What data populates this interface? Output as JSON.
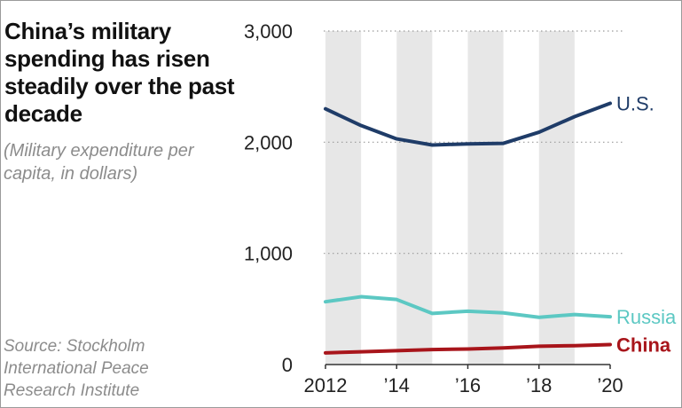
{
  "title": "China’s military spending has risen steadily over the past decade",
  "subtitle": "(Military expenditure per capita, in dollars)",
  "source": "Source: Stockholm International Peace Research Institute",
  "chart_data": {
    "type": "line",
    "title": "China’s military spending has risen steadily over the past decade",
    "subtitle": "(Military expenditure per capita, in dollars)",
    "x": [
      2012,
      2013,
      2014,
      2015,
      2016,
      2017,
      2018,
      2019,
      2020
    ],
    "x_tick_values": [
      2012,
      2014,
      2016,
      2018,
      2020
    ],
    "x_tick_labels": [
      "2012",
      "’14",
      "’16",
      "’18",
      "’20"
    ],
    "y_tick_values": [
      0,
      1000,
      2000,
      3000
    ],
    "y_tick_labels": [
      "0",
      "1,000",
      "2,000",
      "3,000"
    ],
    "ylim": [
      0,
      3000
    ],
    "grid": true,
    "shaded_bands": [
      2012,
      2014,
      2016,
      2018
    ],
    "series": [
      {
        "name": "U.S.",
        "color": "#1f3c68",
        "values": [
          2300,
          2150,
          2030,
          1975,
          1985,
          1990,
          2090,
          2230,
          2350
        ]
      },
      {
        "name": "Russia",
        "color": "#5cc8c3",
        "values": [
          565,
          610,
          585,
          460,
          480,
          465,
          425,
          450,
          430
        ]
      },
      {
        "name": "China",
        "color": "#a8151b",
        "values": [
          105,
          115,
          125,
          135,
          140,
          150,
          165,
          170,
          180
        ]
      }
    ]
  }
}
